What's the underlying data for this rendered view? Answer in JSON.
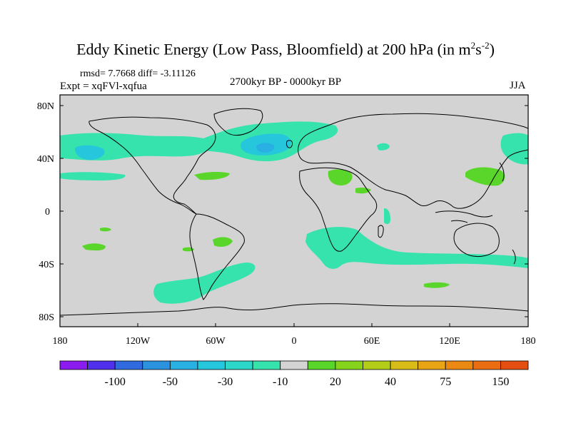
{
  "header": {
    "title_main": "Eddy Kinetic Energy (Low Pass, Bloomfield) at 200 hPa (in m",
    "title_exp1": "2",
    "title_mid": "s",
    "title_exp2": "-2",
    "title_end": ")",
    "stats": "rmsd= 7.7668 diff= -3.11126",
    "expt": "Expt = xqFVl-xqfua",
    "period": "2700kyr BP - 0000kyr BP",
    "season": "JJA"
  },
  "chart_data": {
    "type": "heatmap",
    "projection": "cylindrical-equidistant",
    "lon_range": [
      -180,
      180
    ],
    "lat_range": [
      -90,
      90
    ],
    "background_color": "#d3d3d3",
    "lon_ticks": [
      "180",
      "120W",
      "60W",
      "0",
      "60E",
      "120E",
      "180"
    ],
    "lat_ticks": [
      "80N",
      "40N",
      "0",
      "40S",
      "80S"
    ],
    "colorbar": {
      "colors": [
        "#8a1cf0",
        "#5030ea",
        "#2f6bde",
        "#2a92df",
        "#29b0e3",
        "#26c6dc",
        "#2ed8c8",
        "#36e3ad",
        "#d3d3d3",
        "#5ad62a",
        "#85d41b",
        "#b2cc18",
        "#d8bd18",
        "#e8a415",
        "#ec8913",
        "#ea6d12",
        "#e54e11"
      ],
      "labels": [
        "-100",
        "-50",
        "-30",
        "-10",
        "20",
        "40",
        "75",
        "150"
      ]
    },
    "regions": [
      {
        "name": "north-pacific-band",
        "level": "-10",
        "color": "#36e3ad"
      },
      {
        "name": "north-pacific-core",
        "level": "-30",
        "color": "#26c6dc"
      },
      {
        "name": "north-atlantic-band",
        "level": "-10",
        "color": "#36e3ad"
      },
      {
        "name": "north-atlantic-core",
        "level": "-30",
        "color": "#26c6dc"
      },
      {
        "name": "north-atlantic-center",
        "level": "-50",
        "color": "#29b0e3"
      },
      {
        "name": "southern-ocean-band",
        "level": "-10",
        "color": "#36e3ad"
      },
      {
        "name": "south-atlantic-band",
        "level": "-10",
        "color": "#36e3ad"
      },
      {
        "name": "east-asia-positive",
        "level": "20",
        "color": "#5ad62a"
      },
      {
        "name": "north-africa-positive",
        "level": "20",
        "color": "#5ad62a"
      },
      {
        "name": "south-pacific-positive",
        "level": "20",
        "color": "#5ad62a"
      },
      {
        "name": "indian-ocean-positive",
        "level": "20",
        "color": "#5ad62a"
      }
    ]
  }
}
